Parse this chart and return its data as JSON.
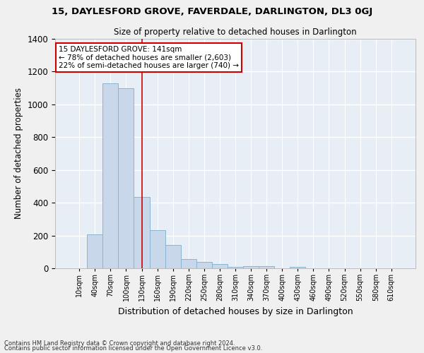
{
  "title": "15, DAYLESFORD GROVE, FAVERDALE, DARLINGTON, DL3 0GJ",
  "subtitle": "Size of property relative to detached houses in Darlington",
  "xlabel": "Distribution of detached houses by size in Darlington",
  "ylabel": "Number of detached properties",
  "bar_color": "#c8d8ea",
  "bar_edge_color": "#8ab4d0",
  "background_color": "#e8eef6",
  "grid_color": "#ffffff",
  "tick_labels": [
    "10sqm",
    "40sqm",
    "70sqm",
    "100sqm",
    "130sqm",
    "160sqm",
    "190sqm",
    "220sqm",
    "250sqm",
    "280sqm",
    "310sqm",
    "340sqm",
    "370sqm",
    "400sqm",
    "430sqm",
    "460sqm",
    "490sqm",
    "520sqm",
    "550sqm",
    "580sqm",
    "610sqm"
  ],
  "bar_values": [
    0,
    207,
    1127,
    1097,
    435,
    233,
    143,
    57,
    38,
    25,
    10,
    15,
    15,
    0,
    10,
    0,
    0,
    0,
    0,
    0,
    0
  ],
  "red_line_x": 4.5,
  "annotation_text": "15 DAYLESFORD GROVE: 141sqm\n← 78% of detached houses are smaller (2,603)\n22% of semi-detached houses are larger (740) →",
  "annotation_box_color": "#ffffff",
  "annotation_box_edge_color": "#cc0000",
  "ylim": [
    0,
    1400
  ],
  "yticks": [
    0,
    200,
    400,
    600,
    800,
    1000,
    1200,
    1400
  ],
  "footnote1": "Contains HM Land Registry data © Crown copyright and database right 2024.",
  "footnote2": "Contains public sector information licensed under the Open Government Licence v3.0."
}
